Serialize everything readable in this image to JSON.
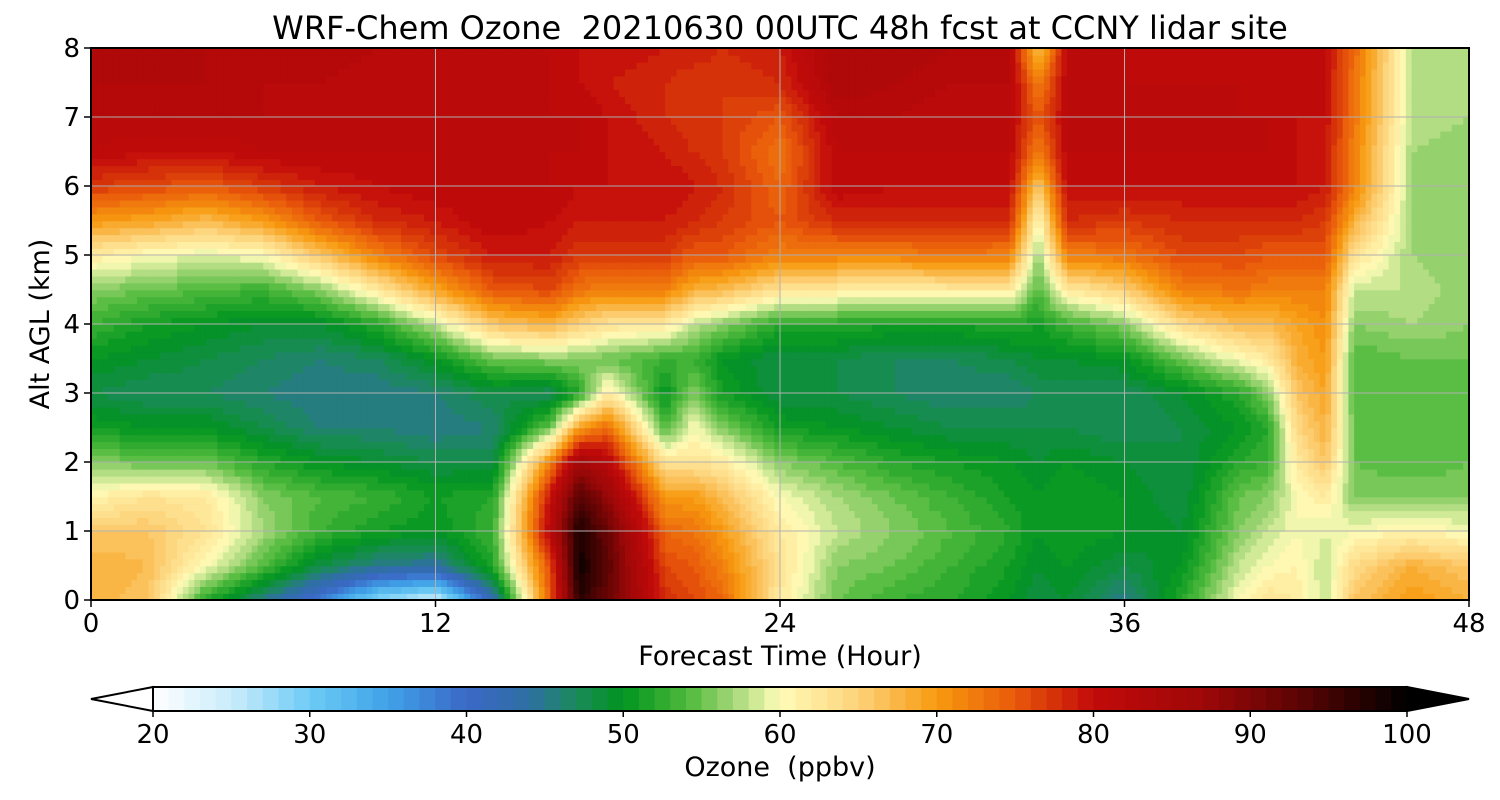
{
  "chart_data": {
    "type": "heatmap",
    "title": "WRF-Chem Ozone  20210630 00UTC 48h fcst at CCNY lidar site",
    "xlabel": "Forecast Time (Hour)",
    "ylabel": "Alt AGL (km)",
    "xlim": [
      0,
      48
    ],
    "ylim": [
      0,
      8
    ],
    "x_ticks": [
      "0",
      "12",
      "24",
      "36",
      "48"
    ],
    "y_ticks": [
      "0",
      "1",
      "2",
      "3",
      "4",
      "5",
      "6",
      "7",
      "8"
    ],
    "grid": true,
    "colorbar": {
      "label": "Ozone  (ppbv)",
      "min": 20,
      "max": 100,
      "step": 1,
      "extend": "both",
      "ticks": [
        "20",
        "30",
        "40",
        "50",
        "60",
        "70",
        "80",
        "90",
        "100"
      ],
      "palette": [
        [
          20,
          "#ffffff"
        ],
        [
          25,
          "#c9ecfb"
        ],
        [
          30,
          "#6ecbf5"
        ],
        [
          35,
          "#3fa2e8"
        ],
        [
          40,
          "#3a68c6"
        ],
        [
          44,
          "#2f6fa3"
        ],
        [
          47,
          "#1b8a5a"
        ],
        [
          50,
          "#00941e"
        ],
        [
          54,
          "#4db93a"
        ],
        [
          57,
          "#a3d778"
        ],
        [
          60,
          "#fffcb8"
        ],
        [
          65,
          "#fdd27a"
        ],
        [
          70,
          "#f79a0f"
        ],
        [
          75,
          "#e9590a"
        ],
        [
          80,
          "#c20a0a"
        ],
        [
          87,
          "#9e0808"
        ],
        [
          93,
          "#5e0404"
        ],
        [
          100,
          "#000000"
        ]
      ]
    },
    "hours": [
      0,
      2,
      4,
      6,
      8,
      10,
      12,
      14,
      16,
      17,
      18,
      20,
      21,
      22,
      24,
      26,
      28,
      30,
      32,
      33,
      34,
      36,
      38,
      40,
      41,
      42,
      43,
      44,
      46,
      48
    ],
    "altitudes_km": [
      0,
      0.5,
      1,
      1.5,
      2,
      2.5,
      3,
      3.5,
      4,
      4.5,
      5,
      5.5,
      6,
      6.5,
      7,
      7.5,
      8
    ],
    "ozone_ppbv": [
      [
        68,
        68,
        66,
        61,
        56,
        51,
        48,
        50,
        53,
        56,
        62,
        70,
        77,
        81,
        82,
        83,
        84
      ],
      [
        66,
        67,
        66,
        63,
        55,
        50,
        47,
        49,
        51,
        55,
        60,
        69,
        76,
        80,
        82,
        83,
        83
      ],
      [
        52,
        60,
        63,
        62,
        55,
        50,
        47,
        48,
        50,
        54,
        59,
        67,
        75,
        80,
        82,
        83,
        83
      ],
      [
        45,
        54,
        57,
        56,
        52,
        48,
        46,
        47,
        49,
        53,
        60,
        70,
        77,
        81,
        82,
        82,
        83
      ],
      [
        38,
        48,
        53,
        54,
        50,
        46,
        45,
        46,
        49,
        56,
        66,
        75,
        79,
        81,
        81,
        82,
        83
      ],
      [
        28,
        45,
        51,
        53,
        49,
        46,
        45,
        47,
        52,
        62,
        72,
        78,
        80,
        81,
        81,
        81,
        82
      ],
      [
        24,
        44,
        50,
        51,
        48,
        45,
        46,
        50,
        58,
        69,
        76,
        79,
        81,
        81,
        81,
        81,
        81
      ],
      [
        42,
        52,
        53,
        52,
        48,
        46,
        48,
        55,
        66,
        75,
        79,
        81,
        81,
        81,
        81,
        81,
        81
      ],
      [
        75,
        76,
        82,
        80,
        72,
        55,
        47,
        56,
        68,
        76,
        79,
        80,
        81,
        81,
        81,
        81,
        81
      ],
      [
        97,
        99,
        98,
        94,
        86,
        70,
        52,
        56,
        65,
        73,
        77,
        79,
        80,
        81,
        81,
        80,
        80
      ],
      [
        92,
        93,
        92,
        88,
        82,
        74,
        62,
        55,
        63,
        72,
        77,
        79,
        80,
        80,
        80,
        79,
        80
      ],
      [
        78,
        76,
        74,
        70,
        63,
        54,
        50,
        53,
        62,
        72,
        77,
        79,
        80,
        79,
        78,
        78,
        79
      ],
      [
        76,
        75,
        73,
        70,
        63,
        60,
        56,
        53,
        58,
        68,
        75,
        78,
        79,
        78,
        77,
        77,
        79
      ],
      [
        74,
        72,
        70,
        67,
        62,
        56,
        51,
        50,
        56,
        67,
        75,
        77,
        78,
        77,
        77,
        77,
        78
      ],
      [
        62,
        63,
        62,
        60,
        56,
        51,
        48,
        48,
        52,
        63,
        72,
        75,
        74,
        73,
        75,
        78,
        79
      ],
      [
        55,
        56,
        58,
        57,
        54,
        50,
        48,
        48,
        52,
        62,
        72,
        78,
        81,
        81,
        82,
        84,
        84
      ],
      [
        53,
        55,
        56,
        55,
        52,
        49,
        47,
        47,
        51,
        61,
        72,
        78,
        80,
        81,
        82,
        83,
        84
      ],
      [
        52,
        53,
        54,
        53,
        51,
        48,
        46,
        47,
        51,
        62,
        73,
        78,
        80,
        81,
        81,
        82,
        83
      ],
      [
        50,
        51,
        52,
        51,
        50,
        48,
        46,
        48,
        52,
        62,
        72,
        78,
        80,
        81,
        81,
        82,
        82
      ],
      [
        48,
        49,
        50,
        50,
        49,
        48,
        47,
        49,
        51,
        54,
        56,
        60,
        66,
        72,
        75,
        72,
        66
      ],
      [
        49,
        50,
        51,
        51,
        50,
        48,
        47,
        49,
        53,
        62,
        72,
        78,
        80,
        81,
        81,
        81,
        81
      ],
      [
        45,
        48,
        50,
        50,
        49,
        47,
        47,
        50,
        56,
        65,
        73,
        77,
        80,
        81,
        81,
        81,
        81
      ],
      [
        52,
        50,
        49,
        48,
        48,
        48,
        49,
        55,
        64,
        72,
        76,
        78,
        80,
        81,
        81,
        81,
        80
      ],
      [
        60,
        58,
        56,
        55,
        52,
        50,
        52,
        60,
        67,
        73,
        76,
        78,
        80,
        81,
        81,
        81,
        80
      ],
      [
        63,
        60,
        58,
        56,
        53,
        52,
        56,
        62,
        67,
        72,
        75,
        78,
        80,
        81,
        81,
        80,
        80
      ],
      [
        62,
        61,
        60,
        60,
        62,
        64,
        66,
        68,
        69,
        72,
        75,
        78,
        80,
        80,
        80,
        80,
        80
      ],
      [
        58,
        58,
        59,
        62,
        66,
        68,
        69,
        70,
        71,
        72,
        75,
        77,
        79,
        79,
        80,
        80,
        80
      ],
      [
        66,
        64,
        60,
        56,
        55,
        55,
        54,
        54,
        56,
        58,
        63,
        68,
        72,
        72,
        73,
        73,
        74
      ],
      [
        70,
        68,
        61,
        56,
        54,
        54,
        54,
        55,
        57,
        58,
        57,
        57,
        57,
        57,
        58,
        58,
        58
      ],
      [
        68,
        66,
        60,
        56,
        55,
        55,
        55,
        55,
        56,
        56,
        56,
        56,
        56,
        56,
        57,
        57,
        57
      ]
    ]
  }
}
